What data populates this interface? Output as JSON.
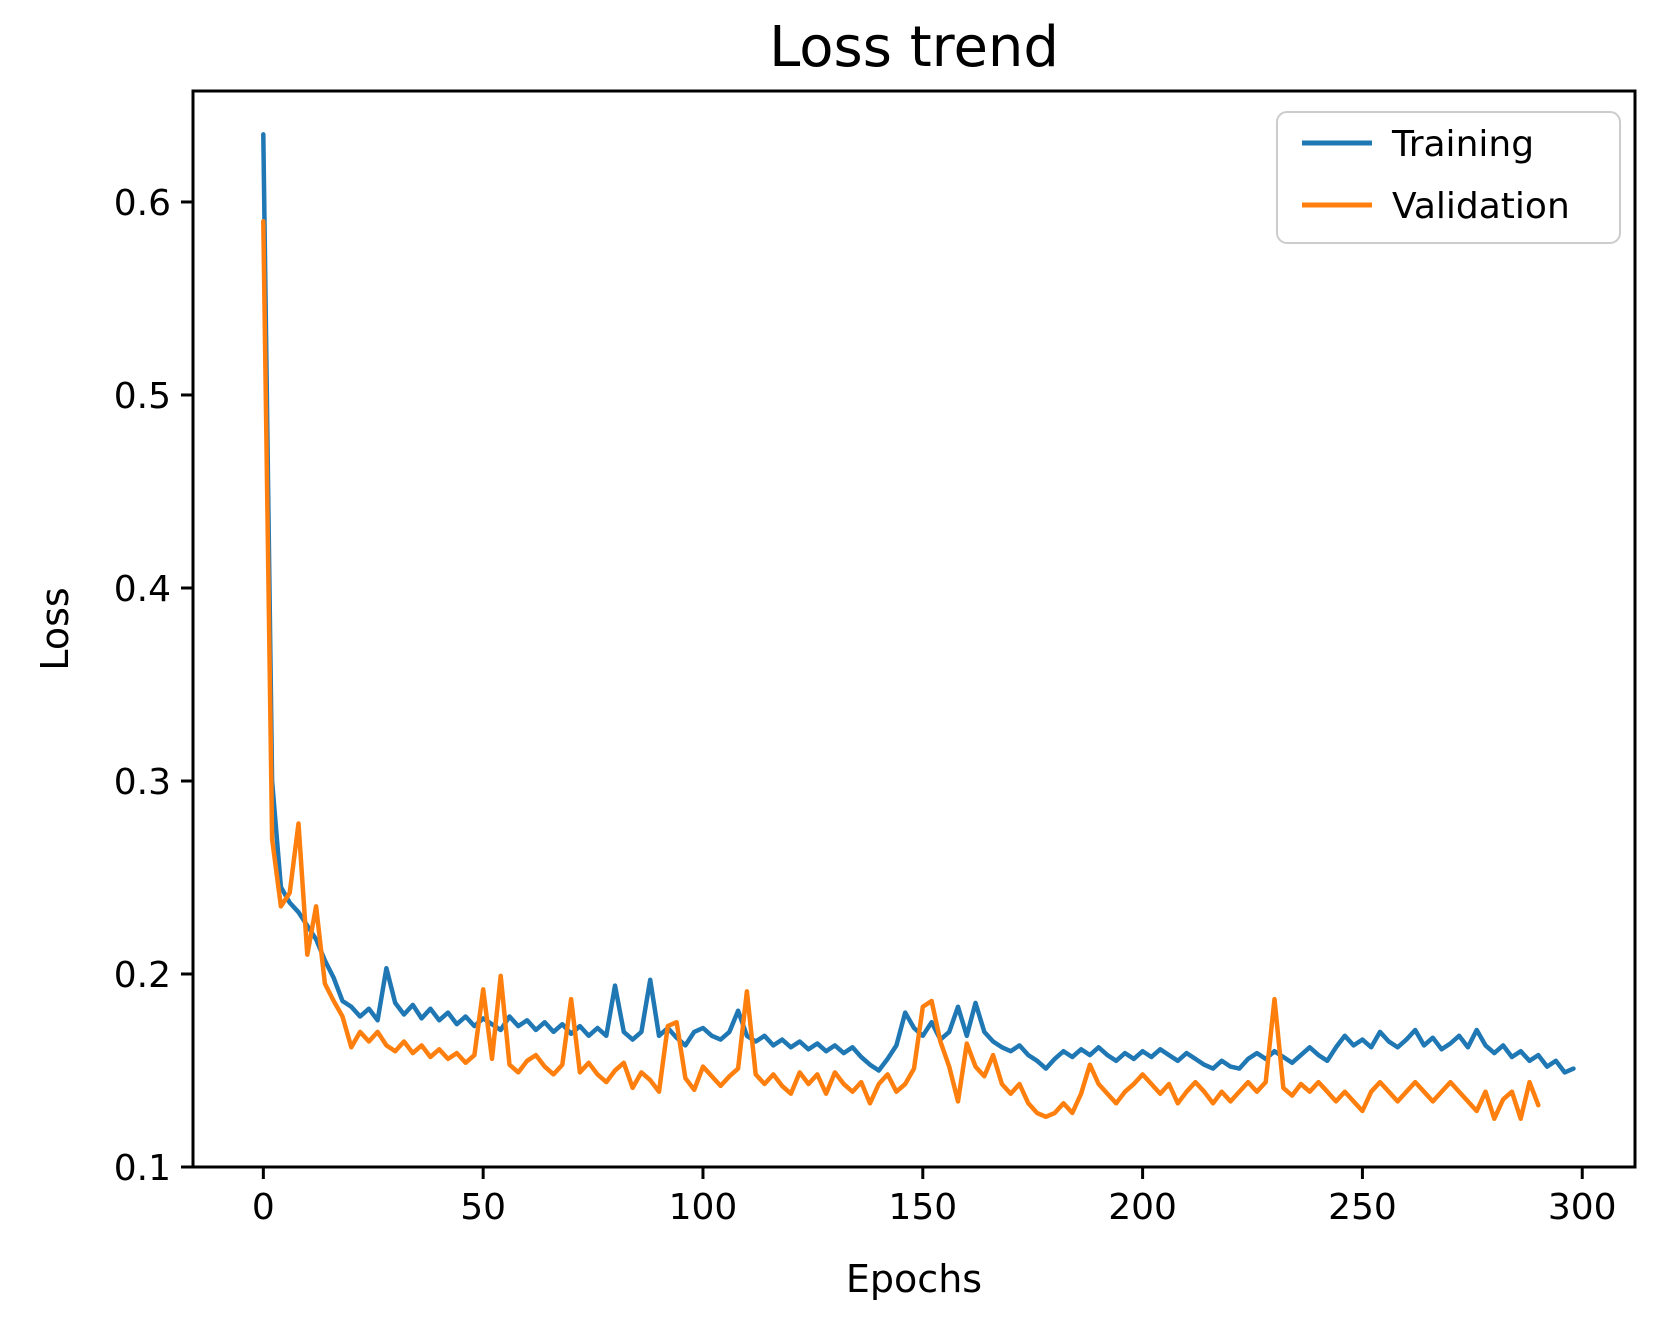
{
  "figure": {
    "background": "#ffffff",
    "spine_color": "#000000"
  },
  "chart_data": {
    "type": "line",
    "title": "Loss trend",
    "xlabel": "Epochs",
    "ylabel": "Loss",
    "xlim": [
      -16,
      312
    ],
    "ylim": [
      0.1,
      0.6575
    ],
    "x_ticks": [
      0,
      50,
      100,
      150,
      200,
      250,
      300
    ],
    "y_ticks": [
      0.1,
      0.2,
      0.3,
      0.4,
      0.5,
      0.6
    ],
    "grid": false,
    "legend": {
      "position": "upper right"
    },
    "x": [
      0,
      2,
      4,
      6,
      8,
      10,
      12,
      14,
      16,
      18,
      20,
      22,
      24,
      26,
      28,
      30,
      32,
      34,
      36,
      38,
      40,
      42,
      44,
      46,
      48,
      50,
      52,
      54,
      56,
      58,
      60,
      62,
      64,
      66,
      68,
      70,
      72,
      74,
      76,
      78,
      80,
      82,
      84,
      86,
      88,
      90,
      92,
      94,
      96,
      98,
      100,
      102,
      104,
      106,
      108,
      110,
      112,
      114,
      116,
      118,
      120,
      122,
      124,
      126,
      128,
      130,
      132,
      134,
      136,
      138,
      140,
      142,
      144,
      146,
      148,
      150,
      152,
      154,
      156,
      158,
      160,
      162,
      164,
      166,
      168,
      170,
      172,
      174,
      176,
      178,
      180,
      182,
      184,
      186,
      188,
      190,
      192,
      194,
      196,
      198,
      200,
      202,
      204,
      206,
      208,
      210,
      212,
      214,
      216,
      218,
      220,
      222,
      224,
      226,
      228,
      230,
      232,
      234,
      236,
      238,
      240,
      242,
      244,
      246,
      248,
      250,
      252,
      254,
      256,
      258,
      260,
      262,
      264,
      266,
      268,
      270,
      272,
      274,
      276,
      278,
      280,
      282,
      284,
      286,
      288,
      290,
      292,
      294,
      296,
      298
    ],
    "series": [
      {
        "name": "Training",
        "color": "#1f77b4",
        "values": [
          0.635,
          0.3,
          0.245,
          0.237,
          0.232,
          0.225,
          0.218,
          0.207,
          0.198,
          0.186,
          0.183,
          0.178,
          0.182,
          0.176,
          0.203,
          0.185,
          0.179,
          0.184,
          0.177,
          0.182,
          0.176,
          0.18,
          0.174,
          0.178,
          0.173,
          0.177,
          0.174,
          0.171,
          0.178,
          0.173,
          0.176,
          0.171,
          0.175,
          0.17,
          0.174,
          0.169,
          0.173,
          0.168,
          0.172,
          0.168,
          0.194,
          0.17,
          0.166,
          0.17,
          0.197,
          0.168,
          0.172,
          0.167,
          0.163,
          0.17,
          0.172,
          0.168,
          0.166,
          0.17,
          0.181,
          0.168,
          0.165,
          0.168,
          0.163,
          0.166,
          0.162,
          0.165,
          0.161,
          0.164,
          0.16,
          0.163,
          0.159,
          0.162,
          0.157,
          0.153,
          0.15,
          0.156,
          0.163,
          0.18,
          0.172,
          0.168,
          0.175,
          0.166,
          0.17,
          0.183,
          0.168,
          0.185,
          0.17,
          0.165,
          0.162,
          0.16,
          0.163,
          0.158,
          0.155,
          0.151,
          0.156,
          0.16,
          0.157,
          0.161,
          0.158,
          0.162,
          0.158,
          0.155,
          0.159,
          0.156,
          0.16,
          0.157,
          0.161,
          0.158,
          0.155,
          0.159,
          0.156,
          0.153,
          0.151,
          0.155,
          0.152,
          0.151,
          0.156,
          0.159,
          0.156,
          0.16,
          0.157,
          0.154,
          0.158,
          0.162,
          0.158,
          0.155,
          0.162,
          0.168,
          0.163,
          0.166,
          0.162,
          0.17,
          0.165,
          0.162,
          0.166,
          0.171,
          0.163,
          0.167,
          0.161,
          0.164,
          0.168,
          0.162,
          0.171,
          0.163,
          0.159,
          0.163,
          0.157,
          0.16,
          0.155,
          0.158,
          0.152,
          0.155,
          0.149,
          0.151
        ]
      },
      {
        "name": "Validation",
        "color": "#ff7f0e",
        "values": [
          0.59,
          0.27,
          0.235,
          0.242,
          0.278,
          0.21,
          0.235,
          0.195,
          0.186,
          0.178,
          0.162,
          0.17,
          0.165,
          0.17,
          0.163,
          0.16,
          0.165,
          0.159,
          0.163,
          0.157,
          0.161,
          0.156,
          0.159,
          0.154,
          0.158,
          0.192,
          0.156,
          0.199,
          0.153,
          0.149,
          0.155,
          0.158,
          0.152,
          0.148,
          0.153,
          0.187,
          0.149,
          0.154,
          0.148,
          0.144,
          0.15,
          0.154,
          0.141,
          0.149,
          0.145,
          0.139,
          0.173,
          0.175,
          0.146,
          0.14,
          0.152,
          0.147,
          0.142,
          0.147,
          0.151,
          0.191,
          0.148,
          0.143,
          0.148,
          0.142,
          0.138,
          0.149,
          0.143,
          0.148,
          0.138,
          0.149,
          0.143,
          0.139,
          0.144,
          0.133,
          0.143,
          0.148,
          0.139,
          0.143,
          0.151,
          0.183,
          0.186,
          0.165,
          0.152,
          0.134,
          0.164,
          0.152,
          0.147,
          0.158,
          0.143,
          0.138,
          0.143,
          0.133,
          0.128,
          0.126,
          0.128,
          0.133,
          0.128,
          0.138,
          0.153,
          0.143,
          0.138,
          0.133,
          0.139,
          0.143,
          0.148,
          0.143,
          0.138,
          0.143,
          0.133,
          0.139,
          0.144,
          0.139,
          0.133,
          0.139,
          0.134,
          0.139,
          0.144,
          0.139,
          0.144,
          0.187,
          0.141,
          0.137,
          0.143,
          0.139,
          0.144,
          0.139,
          0.134,
          0.139,
          0.134,
          0.129,
          0.139,
          0.144,
          0.139,
          0.134,
          0.139,
          0.144,
          0.139,
          0.134,
          0.139,
          0.144,
          0.139,
          0.134,
          0.129,
          0.139,
          0.125,
          0.135,
          0.139,
          0.125,
          0.144,
          0.132
        ]
      }
    ]
  }
}
